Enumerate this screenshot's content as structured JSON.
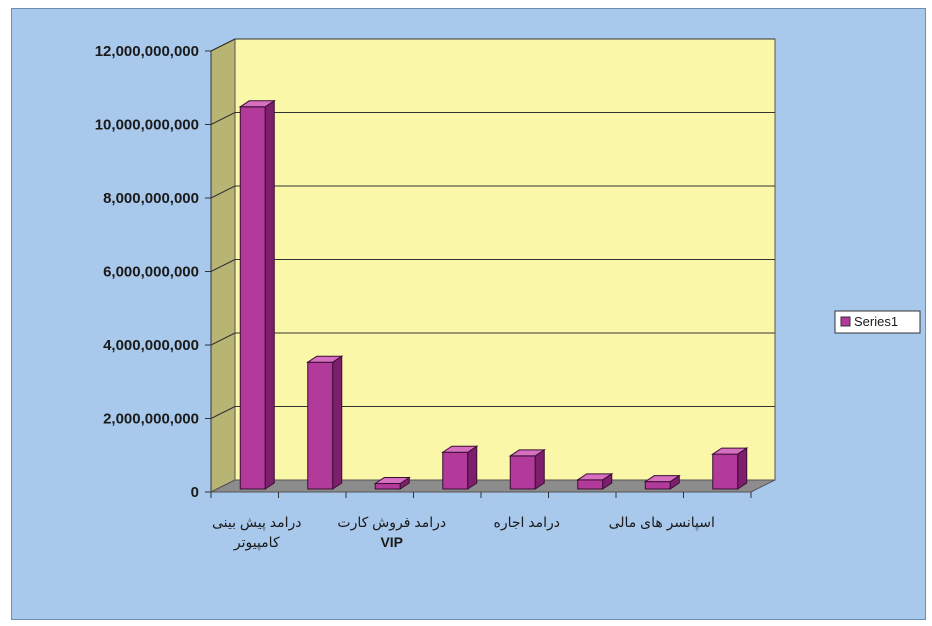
{
  "chart_data": {
    "type": "bar",
    "categories": [
      "درامد پیش بینی کامپیوتر",
      "",
      "درامد فروش کارت VIP",
      "",
      "درامد اجاره",
      "",
      "اسپانسر های مالی",
      ""
    ],
    "category_label_lines": [
      [
        "درامد پیش بینی",
        "کامپیوتر"
      ],
      [],
      [
        "درامد فروش کارت",
        "VIP"
      ],
      [],
      [
        "درامد اجاره"
      ],
      [],
      [
        "اسپانسر های مالی"
      ],
      []
    ],
    "series": [
      {
        "name": "Series1",
        "values": [
          10400000000,
          3450000000,
          150000000,
          1000000000,
          900000000,
          250000000,
          200000000,
          950000000
        ]
      }
    ],
    "ylim": [
      0,
      12000000000
    ],
    "yticks": [
      0,
      2000000000,
      4000000000,
      6000000000,
      8000000000,
      10000000000,
      12000000000
    ],
    "ytick_labels": [
      "0",
      "2,000,000,000",
      "4,000,000,000",
      "6,000,000,000",
      "8,000,000,000",
      "10,000,000,000",
      "12,000,000,000"
    ],
    "grid": true,
    "legend_position": "right",
    "colors": {
      "bar_front": "#b23a9a",
      "bar_side": "#7d1f6c",
      "bar_top": "#d66fc0",
      "wall": "#fbf7a9",
      "side_wall": "#b8b474",
      "floor": "#8c8c8c",
      "background": "#a9c9ec"
    }
  }
}
